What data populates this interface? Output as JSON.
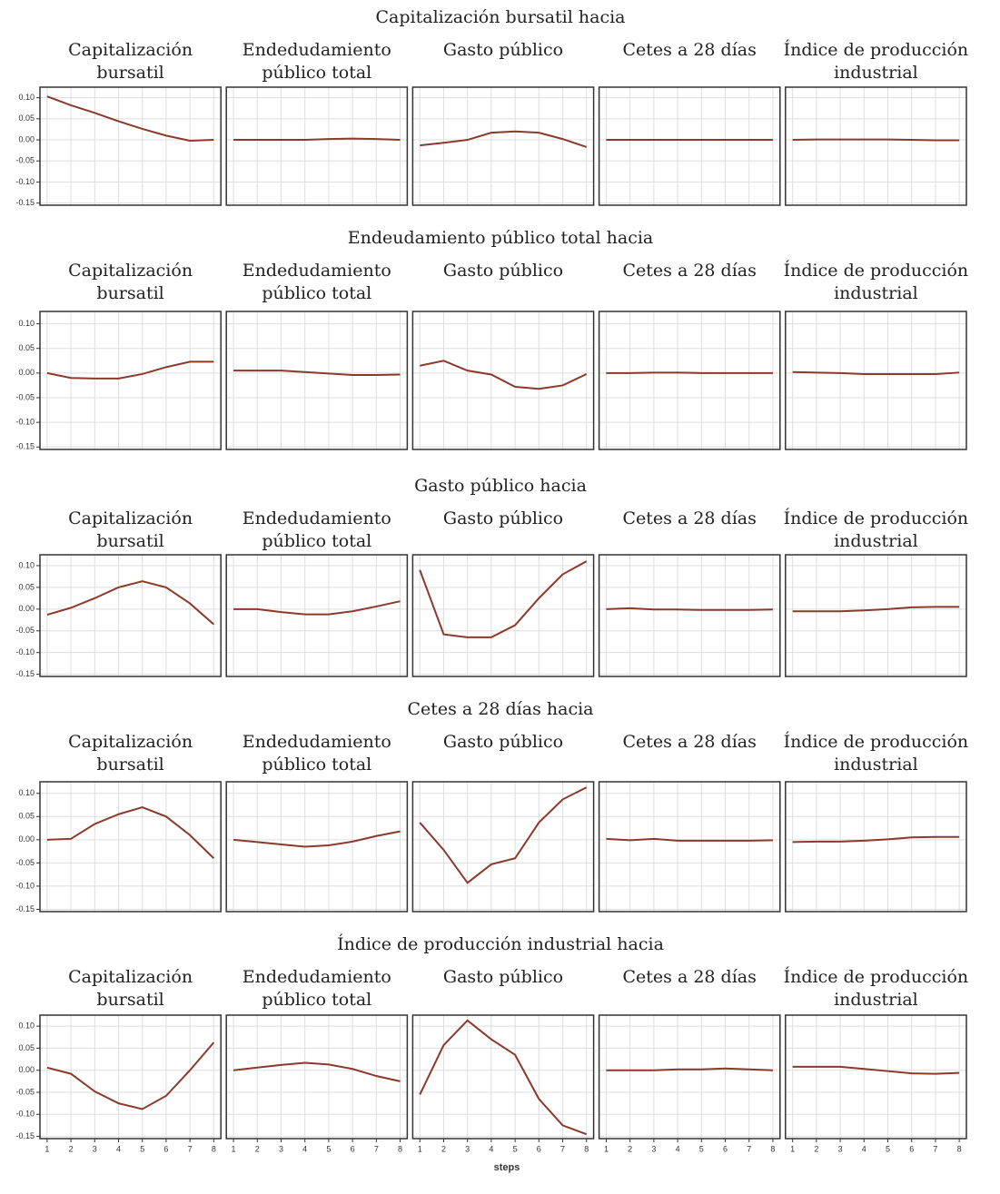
{
  "axes": {
    "xlabel": "steps",
    "color": "#8b3a2a",
    "grid": true,
    "xlim": [
      0.7,
      8.3
    ],
    "xticks": [
      1,
      2,
      3,
      4,
      5,
      6,
      7,
      8
    ],
    "ylim": [
      -0.155,
      0.125
    ],
    "yticks": [
      {
        "value": -0.15,
        "label": "-0.15"
      },
      {
        "value": -0.1,
        "label": "-0.10"
      },
      {
        "value": -0.05,
        "label": "-0.05"
      },
      {
        "value": 0,
        "label": "0.00"
      },
      {
        "value": 0.05,
        "label": "0.05"
      },
      {
        "value": 0.1,
        "label": "0.10"
      }
    ]
  },
  "rows": [
    {
      "title": "Capitalización bursatil hacia",
      "chart_data": [
        {
          "type": "line",
          "title": [
            "Capitalización",
            "bursatil"
          ],
          "values": [
            0.103,
            0.082,
            0.064,
            0.044,
            0.026,
            0.01,
            -0.002,
            0.0
          ]
        },
        {
          "type": "line",
          "title": [
            "Endedudamiento",
            "público total"
          ],
          "values": [
            0,
            0,
            0,
            0,
            0.002,
            0.003,
            0.002,
            0
          ]
        },
        {
          "type": "line",
          "title": [
            "Gasto público"
          ],
          "values": [
            -0.013,
            -0.007,
            0,
            0.017,
            0.02,
            0.017,
            0.002,
            -0.017
          ]
        },
        {
          "type": "line",
          "title": [
            "Cetes a 28 días"
          ],
          "values": [
            0,
            0,
            0,
            0,
            0,
            0,
            0,
            0
          ]
        },
        {
          "type": "line",
          "title": [
            "Índice de producción",
            "industrial"
          ],
          "values": [
            0,
            0.001,
            0.001,
            0.001,
            0.001,
            0,
            -0.001,
            -0.001
          ]
        }
      ]
    },
    {
      "title": "Endeudamiento público total hacia",
      "chart_data": [
        {
          "type": "line",
          "title": [
            "Capitalización",
            "bursatil"
          ],
          "values": [
            0,
            -0.01,
            -0.011,
            -0.011,
            -0.002,
            0.012,
            0.023,
            0.023
          ]
        },
        {
          "type": "line",
          "title": [
            "Endedudamiento",
            "público total"
          ],
          "values": [
            0.005,
            0.005,
            0.005,
            0.002,
            -0.001,
            -0.004,
            -0.004,
            -0.003
          ]
        },
        {
          "type": "line",
          "title": [
            "Gasto público"
          ],
          "values": [
            0.015,
            0.025,
            0.005,
            -0.003,
            -0.028,
            -0.032,
            -0.025,
            -0.002
          ]
        },
        {
          "type": "line",
          "title": [
            "Cetes a 28 días"
          ],
          "values": [
            0,
            0,
            0.001,
            0.001,
            0,
            0,
            0,
            0
          ]
        },
        {
          "type": "line",
          "title": [
            "Índice de producción",
            "industrial"
          ],
          "values": [
            0.002,
            0.001,
            0,
            -0.002,
            -0.002,
            -0.002,
            -0.002,
            0.001
          ]
        }
      ]
    },
    {
      "title": "Gasto público hacia",
      "chart_data": [
        {
          "type": "line",
          "title": [
            "Capitalización",
            "bursatil"
          ],
          "values": [
            -0.013,
            0.003,
            0.025,
            0.05,
            0.064,
            0.05,
            0.013,
            -0.035
          ]
        },
        {
          "type": "line",
          "title": [
            "Endedudamiento",
            "público total"
          ],
          "values": [
            0,
            0,
            -0.007,
            -0.012,
            -0.012,
            -0.005,
            0.006,
            0.018
          ]
        },
        {
          "type": "line",
          "title": [
            "Gasto público"
          ],
          "values": [
            0.09,
            -0.058,
            -0.065,
            -0.065,
            -0.037,
            0.025,
            0.08,
            0.11
          ]
        },
        {
          "type": "line",
          "title": [
            "Cetes a 28 días"
          ],
          "values": [
            0,
            0.002,
            -0.001,
            -0.001,
            -0.002,
            -0.002,
            -0.002,
            -0.001
          ]
        },
        {
          "type": "line",
          "title": [
            "Índice de producción",
            "industrial"
          ],
          "values": [
            -0.005,
            -0.005,
            -0.005,
            -0.003,
            0,
            0.004,
            0.005,
            0.005
          ]
        }
      ]
    },
    {
      "title": "Cetes a 28 días hacia",
      "chart_data": [
        {
          "type": "line",
          "title": [
            "Capitalización",
            "bursatil"
          ],
          "values": [
            0,
            0.002,
            0.034,
            0.055,
            0.07,
            0.05,
            0.01,
            -0.04
          ]
        },
        {
          "type": "line",
          "title": [
            "Endedudamiento",
            "público total"
          ],
          "values": [
            0,
            -0.005,
            -0.01,
            -0.015,
            -0.012,
            -0.004,
            0.008,
            0.018
          ]
        },
        {
          "type": "line",
          "title": [
            "Gasto público"
          ],
          "values": [
            0.037,
            -0.022,
            -0.093,
            -0.053,
            -0.04,
            0.037,
            0.087,
            0.113
          ]
        },
        {
          "type": "line",
          "title": [
            "Cetes a 28 días"
          ],
          "values": [
            0.002,
            -0.001,
            0.002,
            -0.002,
            -0.002,
            -0.002,
            -0.002,
            -0.001
          ]
        },
        {
          "type": "line",
          "title": [
            "Índice de producción",
            "industrial"
          ],
          "values": [
            -0.005,
            -0.004,
            -0.004,
            -0.002,
            0.001,
            0.005,
            0.006,
            0.006
          ]
        }
      ]
    },
    {
      "title": "Índice de producción industrial hacia",
      "chart_data": [
        {
          "type": "line",
          "title": [
            "Capitalización",
            "bursatil"
          ],
          "values": [
            0.006,
            -0.008,
            -0.048,
            -0.075,
            -0.088,
            -0.058,
            0,
            0.063
          ]
        },
        {
          "type": "line",
          "title": [
            "Endedudamiento",
            "público total"
          ],
          "values": [
            0,
            0.006,
            0.012,
            0.017,
            0.013,
            0.003,
            -0.013,
            -0.025
          ]
        },
        {
          "type": "line",
          "title": [
            "Gasto público"
          ],
          "values": [
            -0.055,
            0.057,
            0.113,
            0.07,
            0.035,
            -0.065,
            -0.125,
            -0.145
          ]
        },
        {
          "type": "line",
          "title": [
            "Cetes a 28 días"
          ],
          "values": [
            0,
            0,
            0,
            0.002,
            0.002,
            0.004,
            0.002,
            0
          ]
        },
        {
          "type": "line",
          "title": [
            "Índice de producción",
            "industrial"
          ],
          "values": [
            0.008,
            0.008,
            0.008,
            0.003,
            -0.002,
            -0.007,
            -0.008,
            -0.006
          ]
        }
      ]
    }
  ]
}
